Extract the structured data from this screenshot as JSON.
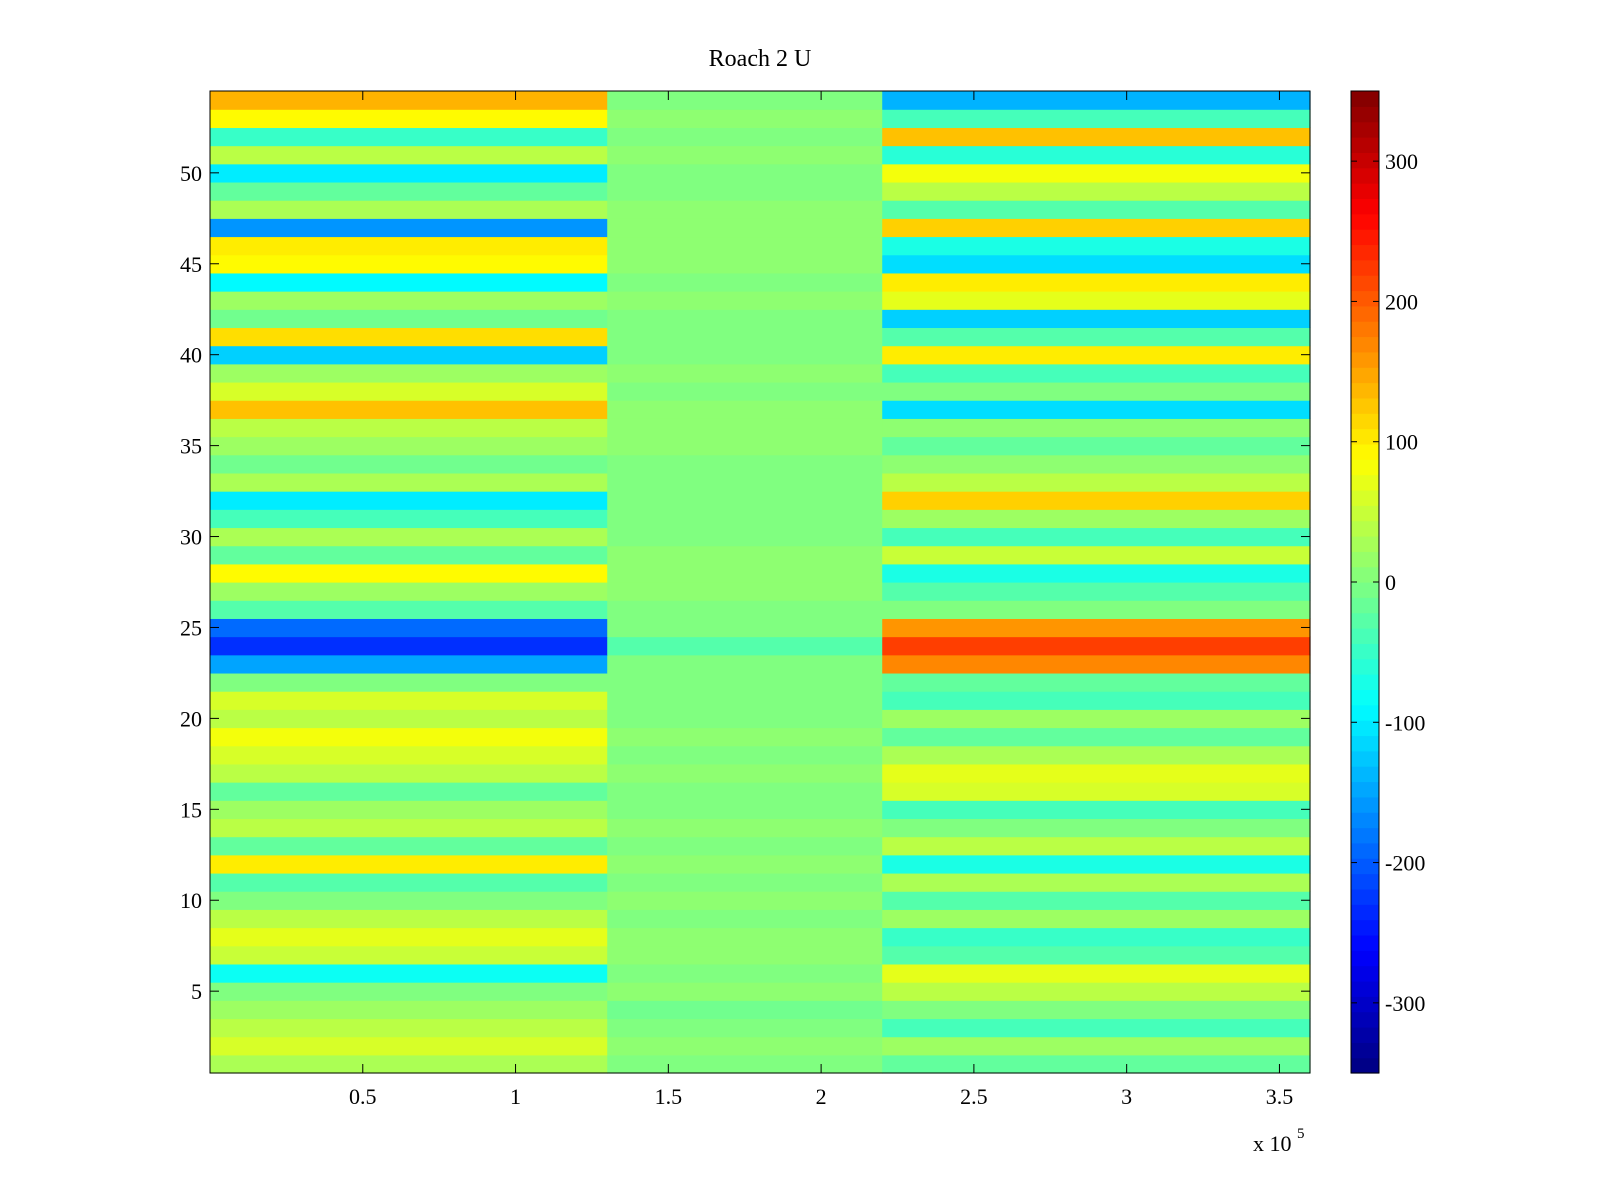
{
  "chart_data": {
    "type": "heatmap",
    "title": "Roach 2 U",
    "xlabel": "",
    "ylabel": "",
    "x_multiplier_label": "x 10",
    "x_multiplier_exponent": "5",
    "xlim": [
      0,
      360000
    ],
    "ylim": [
      0.5,
      54.5
    ],
    "x_ticks": [
      {
        "value": 50000,
        "label": "0.5"
      },
      {
        "value": 100000,
        "label": "1"
      },
      {
        "value": 150000,
        "label": "1.5"
      },
      {
        "value": 200000,
        "label": "2"
      },
      {
        "value": 250000,
        "label": "2.5"
      },
      {
        "value": 300000,
        "label": "3"
      },
      {
        "value": 350000,
        "label": "3.5"
      }
    ],
    "y_ticks": [
      {
        "value": 5,
        "label": "5"
      },
      {
        "value": 10,
        "label": "10"
      },
      {
        "value": 15,
        "label": "15"
      },
      {
        "value": 20,
        "label": "20"
      },
      {
        "value": 25,
        "label": "25"
      },
      {
        "value": 30,
        "label": "30"
      },
      {
        "value": 35,
        "label": "35"
      },
      {
        "value": 40,
        "label": "40"
      },
      {
        "value": 45,
        "label": "45"
      },
      {
        "value": 50,
        "label": "50"
      }
    ],
    "colormap": "jet",
    "colorbar": {
      "clim": [
        -350,
        350
      ],
      "ticks": [
        {
          "value": 300,
          "label": "300"
        },
        {
          "value": 200,
          "label": "200"
        },
        {
          "value": 100,
          "label": "100"
        },
        {
          "value": 0,
          "label": "0"
        },
        {
          "value": -100,
          "label": "-100"
        },
        {
          "value": -200,
          "label": "-200"
        },
        {
          "value": -300,
          "label": "-300"
        }
      ]
    },
    "rows": [
      1,
      2,
      3,
      4,
      5,
      6,
      7,
      8,
      9,
      10,
      11,
      12,
      13,
      14,
      15,
      16,
      17,
      18,
      19,
      20,
      21,
      22,
      23,
      24,
      25,
      26,
      27,
      28,
      29,
      30,
      31,
      32,
      33,
      34,
      35,
      36,
      37,
      38,
      39,
      40,
      41,
      42,
      43,
      44,
      45,
      46,
      47,
      48,
      49,
      50,
      51,
      52,
      53,
      54
    ],
    "segment_boundaries_x": [
      0,
      130000,
      220000,
      360000
    ],
    "row_values_by_segment": [
      [
        30,
        0,
        -20
      ],
      [
        60,
        10,
        20
      ],
      [
        40,
        0,
        -40
      ],
      [
        20,
        -10,
        0
      ],
      [
        0,
        10,
        40
      ],
      [
        -80,
        0,
        70
      ],
      [
        50,
        10,
        -30
      ],
      [
        70,
        10,
        -50
      ],
      [
        40,
        0,
        20
      ],
      [
        0,
        10,
        -30
      ],
      [
        -30,
        0,
        30
      ],
      [
        100,
        10,
        -70
      ],
      [
        -20,
        0,
        40
      ],
      [
        40,
        10,
        0
      ],
      [
        20,
        0,
        -40
      ],
      [
        -20,
        0,
        60
      ],
      [
        40,
        10,
        70
      ],
      [
        60,
        0,
        30
      ],
      [
        80,
        10,
        -20
      ],
      [
        40,
        0,
        20
      ],
      [
        60,
        0,
        -40
      ],
      [
        0,
        0,
        -20
      ],
      [
        -150,
        0,
        170
      ],
      [
        -230,
        -30,
        220
      ],
      [
        -190,
        0,
        160
      ],
      [
        -30,
        0,
        0
      ],
      [
        20,
        10,
        -30
      ],
      [
        90,
        10,
        -70
      ],
      [
        -20,
        10,
        50
      ],
      [
        30,
        0,
        -40
      ],
      [
        -40,
        0,
        20
      ],
      [
        -100,
        0,
        120
      ],
      [
        30,
        0,
        40
      ],
      [
        -10,
        0,
        10
      ],
      [
        20,
        10,
        -20
      ],
      [
        40,
        10,
        10
      ],
      [
        130,
        10,
        -110
      ],
      [
        60,
        0,
        0
      ],
      [
        20,
        10,
        -40
      ],
      [
        -120,
        0,
        100
      ],
      [
        110,
        0,
        -30
      ],
      [
        -10,
        0,
        -120
      ],
      [
        20,
        10,
        70
      ],
      [
        -90,
        0,
        100
      ],
      [
        90,
        10,
        -110
      ],
      [
        100,
        10,
        -70
      ],
      [
        -160,
        10,
        120
      ],
      [
        30,
        10,
        -30
      ],
      [
        -20,
        0,
        40
      ],
      [
        -100,
        0,
        80
      ],
      [
        40,
        10,
        -60
      ],
      [
        -50,
        0,
        130
      ],
      [
        90,
        10,
        -40
      ],
      [
        140,
        0,
        -140
      ]
    ]
  }
}
